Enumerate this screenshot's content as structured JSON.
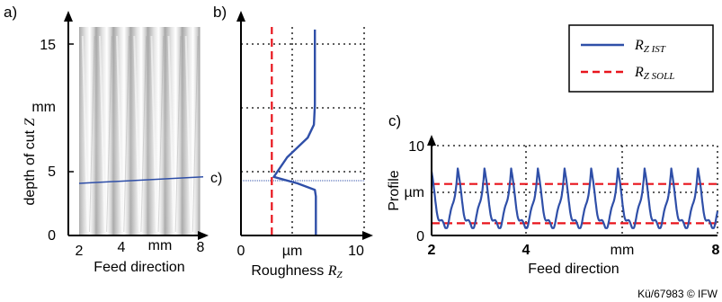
{
  "panel_labels": {
    "a": "a)",
    "b": "b)",
    "c": "c)"
  },
  "marker_label": "c)",
  "legend": {
    "ist": "R",
    "ist_sub": "Z IST",
    "soll": "R",
    "soll_sub": "Z SOLL",
    "ist_color": "#2f4fa8",
    "soll_color": "#e8141c"
  },
  "copyright": "Kü/67983 © IFW",
  "chart_data": [
    {
      "panel": "a",
      "type": "heatmap",
      "title": "",
      "ylabel": "depth of cut ",
      "ylabel_symbol": "Z",
      "yunit": "mm",
      "xlabel": "Feed direction",
      "xunit": "mm",
      "yticks": [
        "0",
        "5",
        "15"
      ],
      "xticks": [
        "2",
        "4",
        "8"
      ],
      "ylim": [
        0,
        16
      ],
      "xlim": [
        2,
        8
      ],
      "cut_line": {
        "x": [
          2,
          8
        ],
        "y": [
          4.0,
          4.5
        ],
        "label": "c)"
      }
    },
    {
      "panel": "b",
      "type": "line",
      "title": "",
      "xlabel": "Roughness ",
      "xlabel_symbol": "R",
      "xlabel_subscript": "Z",
      "xunit": "µm",
      "xticks": [
        "0",
        "10"
      ],
      "xlim": [
        0,
        12
      ],
      "ylim": [
        0,
        16
      ],
      "grid": true,
      "series": [
        {
          "name": "R_Z IST",
          "x": [
            7.3,
            7.3,
            7.3,
            7.3,
            7.2,
            5.5,
            3.2,
            4.5,
            6.5,
            7.1,
            7.2,
            7.2
          ],
          "y": [
            0,
            1,
            2,
            3,
            3.5,
            4.0,
            4.5,
            6,
            7.5,
            8.5,
            10,
            15.8
          ]
        },
        {
          "name": "R_Z SOLL",
          "x": [
            3,
            3
          ],
          "y": [
            0,
            16
          ]
        }
      ]
    },
    {
      "panel": "c",
      "type": "line",
      "title": "",
      "ylabel": "Profile",
      "yunit": "µm",
      "xlabel": "Feed direction",
      "xunit": "mm",
      "yticks": [
        "0",
        "10"
      ],
      "xticks": [
        "2",
        "4",
        "8"
      ],
      "xlim": [
        2,
        8
      ],
      "ylim": [
        0,
        11
      ],
      "grid": true,
      "soll_levels": [
        1.5,
        6.3
      ],
      "period_start": 2.55,
      "period": 0.56,
      "series": [
        {
          "name": "R_Z IST"
        },
        {
          "name": "R_Z SOLL"
        }
      ]
    }
  ]
}
